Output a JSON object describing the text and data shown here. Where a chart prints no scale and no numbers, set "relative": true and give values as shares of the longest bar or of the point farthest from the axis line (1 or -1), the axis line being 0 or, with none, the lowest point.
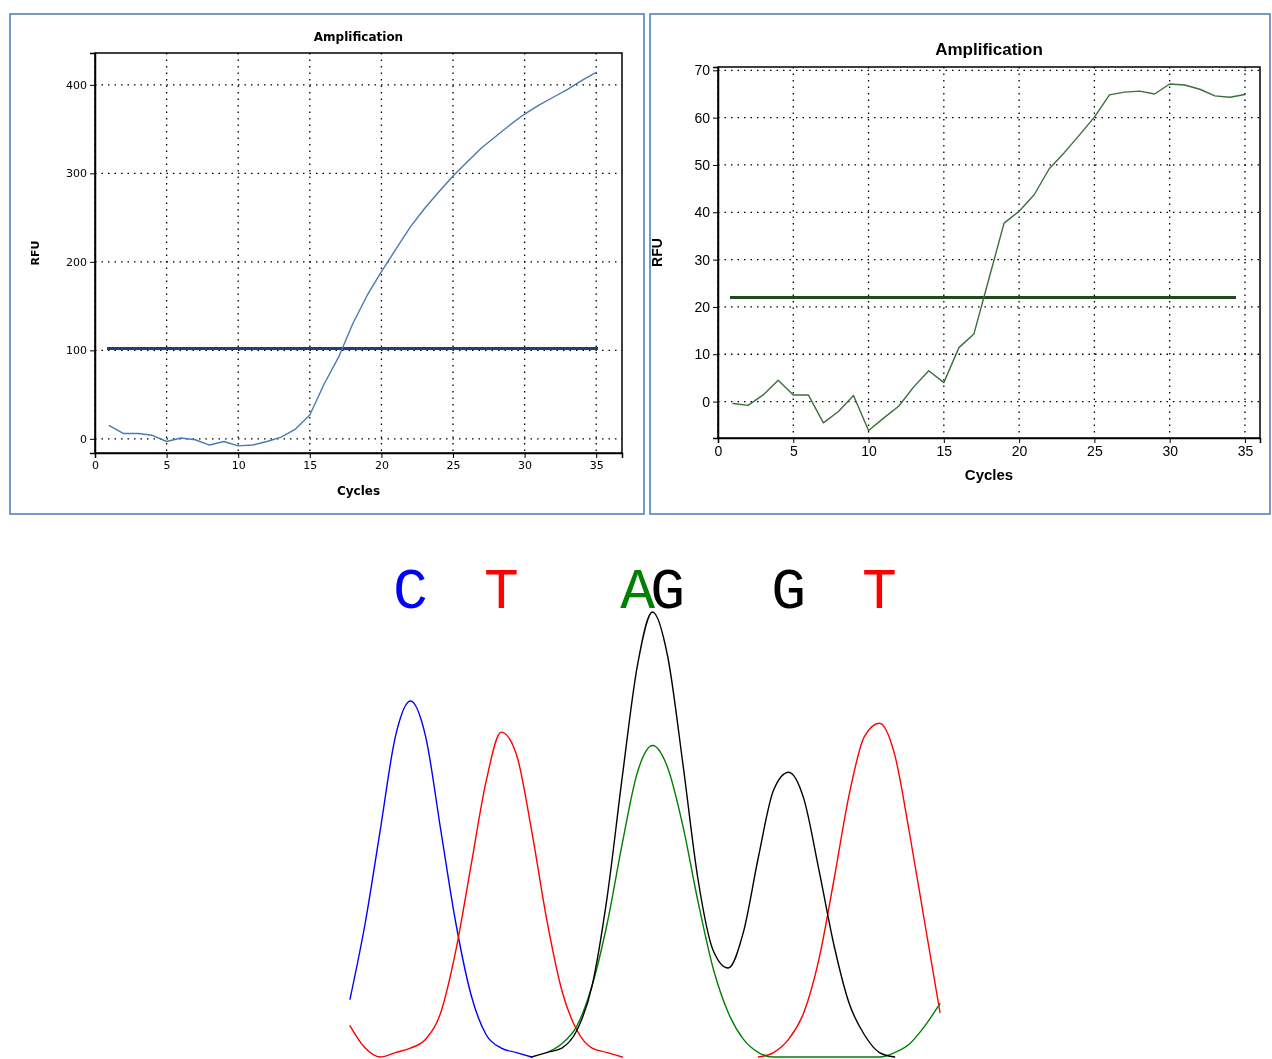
{
  "chart_data": [
    {
      "type": "line",
      "title": "Amplification",
      "xlabel": "Cycles",
      "ylabel": "RFU",
      "xlim": [
        0,
        36.8
      ],
      "xticks": [
        0,
        5,
        10,
        15,
        20,
        25,
        30,
        35
      ],
      "ylim": [
        -16,
        436
      ],
      "yticks": [
        0,
        100,
        200,
        300,
        400
      ],
      "grid": true,
      "x": [
        1,
        2,
        3,
        4,
        5,
        6,
        7,
        8,
        9,
        10,
        11,
        12,
        13,
        14,
        15,
        16,
        17,
        18,
        19,
        20,
        21,
        22,
        23,
        24,
        25,
        26,
        27,
        28,
        29,
        30,
        31,
        32,
        33,
        34,
        35
      ],
      "series": [
        {
          "color": "#4a7ab0",
          "values": [
            15,
            6,
            6,
            4,
            -3,
            1,
            -1,
            -7,
            -3,
            -8,
            -7,
            -3,
            2,
            11,
            27,
            62,
            92,
            130,
            162,
            189,
            214,
            239,
            260,
            279,
            297,
            313,
            329,
            342,
            355,
            367,
            377,
            386,
            395,
            405,
            414
          ]
        }
      ],
      "ref_lines": [
        {
          "axis": "y",
          "value": 102,
          "color": "#1f3f7a"
        }
      ]
    },
    {
      "type": "line",
      "title": "Amplification",
      "xlabel": "Cycles",
      "ylabel": "RFU",
      "xlim": [
        0,
        36
      ],
      "xticks": [
        0,
        5,
        10,
        15,
        20,
        25,
        30,
        35
      ],
      "ylim": [
        -7.7,
        70.7
      ],
      "yticks": [
        0,
        10,
        20,
        30,
        40,
        50,
        60,
        70
      ],
      "grid": true,
      "x": [
        1,
        2,
        3,
        4,
        5,
        6,
        7,
        8,
        9,
        10,
        11,
        12,
        13,
        14,
        15,
        16,
        17,
        18,
        19,
        20,
        21,
        22,
        23,
        24,
        25,
        26,
        27,
        28,
        29,
        30,
        31,
        32,
        33,
        34,
        35
      ],
      "series": [
        {
          "color": "#3d6e3d",
          "values": [
            -0.4,
            -0.8,
            1.4,
            4.5,
            1.4,
            1.4,
            -4.5,
            -2.1,
            1.3,
            -6.1,
            -3.5,
            -1,
            3.1,
            6.5,
            4,
            11.4,
            14.3,
            26,
            37.7,
            40.2,
            43.7,
            49.2,
            52.6,
            56.3,
            60.1,
            64.8,
            65.4,
            65.6,
            65,
            67.1,
            66.9,
            66,
            64.6,
            64.3,
            64.9
          ]
        }
      ],
      "ref_lines": [
        {
          "axis": "y",
          "value": 22,
          "color": "#1e4a1e"
        }
      ]
    },
    {
      "type": "line",
      "relative": true,
      "annotations": [
        "C",
        "T",
        "A",
        "G",
        "G",
        "T"
      ],
      "categories": [
        null,
        null,
        null,
        null,
        null,
        null,
        null,
        null,
        null,
        null,
        null,
        null,
        null,
        null,
        null,
        null,
        null,
        null,
        null,
        null,
        null,
        null,
        null,
        null,
        null,
        null,
        null,
        null,
        null,
        null,
        null,
        null,
        null,
        null,
        null,
        null,
        null,
        null,
        null,
        null
      ],
      "series": [
        {
          "color": "#0000ff",
          "values": [
            0.13,
            0.3,
            0.51,
            0.72,
            0.8,
            0.72,
            0.51,
            0.3,
            0.14,
            0.05,
            0.02,
            0.01,
            0,
            null,
            null,
            null,
            null,
            null,
            null,
            null,
            null,
            null,
            null,
            null,
            null,
            null,
            null,
            null,
            null,
            null,
            null,
            null,
            null,
            null,
            null,
            null,
            null,
            null,
            null,
            null
          ]
        },
        {
          "color": "#ff0000",
          "values": [
            0.07,
            0.02,
            0,
            0.01,
            0.02,
            0.04,
            0.1,
            0.24,
            0.43,
            0.62,
            0.73,
            0.68,
            0.51,
            0.31,
            0.15,
            0.06,
            0.02,
            0.01,
            0,
            null,
            null,
            null,
            null,
            null,
            null,
            null,
            null,
            0,
            0.01,
            0.04,
            0.1,
            0.22,
            0.4,
            0.59,
            0.72,
            0.75,
            0.68,
            0.5,
            0.3,
            0.1
          ]
        },
        {
          "color": "#008000",
          "values": [
            null,
            null,
            null,
            null,
            null,
            null,
            null,
            null,
            null,
            null,
            null,
            null,
            null,
            0.01,
            0.03,
            0.07,
            0.16,
            0.3,
            0.48,
            0.64,
            0.7,
            0.65,
            0.52,
            0.35,
            0.2,
            0.1,
            0.04,
            0.01,
            0,
            0,
            0,
            0,
            0,
            0,
            0,
            0,
            0.01,
            0.03,
            0.07,
            0.12
          ]
        },
        {
          "color": "#000000",
          "values": [
            null,
            null,
            null,
            null,
            null,
            null,
            null,
            null,
            null,
            null,
            null,
            null,
            0,
            0.01,
            0.02,
            0.06,
            0.16,
            0.36,
            0.63,
            0.88,
            1.0,
            0.9,
            0.66,
            0.4,
            0.24,
            0.2,
            0.28,
            0.45,
            0.6,
            0.64,
            0.58,
            0.42,
            0.25,
            0.12,
            0.05,
            0.01,
            0,
            null,
            null,
            null
          ]
        }
      ]
    }
  ]
}
